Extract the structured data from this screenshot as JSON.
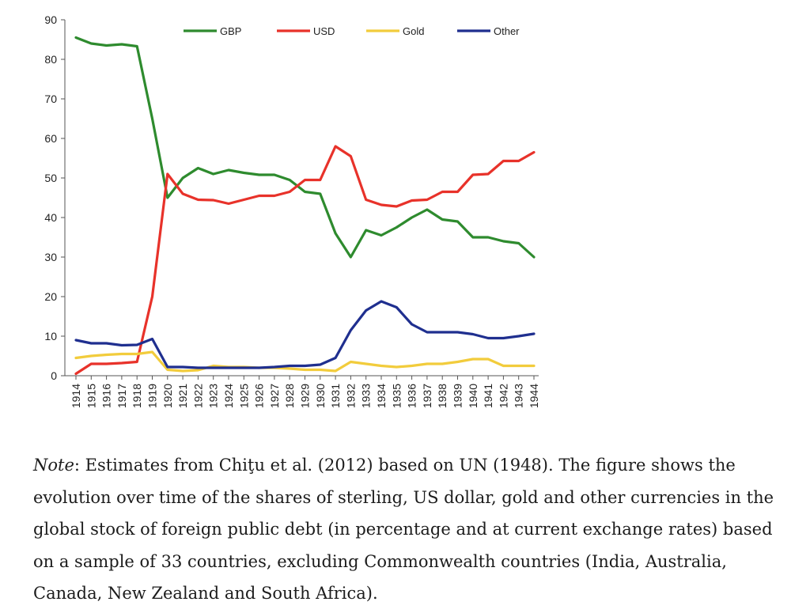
{
  "chart_data": {
    "type": "line",
    "title": "",
    "xlabel": "",
    "ylabel": "",
    "ylim": [
      0,
      90
    ],
    "yticks": [
      0,
      10,
      20,
      30,
      40,
      50,
      60,
      70,
      80,
      90
    ],
    "x": [
      "1914",
      "1915",
      "1916",
      "1917",
      "1918",
      "1919",
      "1920",
      "1921",
      "1922",
      "1923",
      "1924",
      "1925",
      "1926",
      "1927",
      "1928",
      "1929",
      "1930",
      "1931",
      "1932",
      "1933",
      "1934",
      "1935",
      "1936",
      "1937",
      "1938",
      "1939",
      "1940",
      "1941",
      "1942",
      "1943",
      "1944"
    ],
    "legend_position": "top",
    "series": [
      {
        "name": "GBP",
        "color": "#2e8b2e",
        "values": [
          85.5,
          84,
          83.5,
          83.8,
          83.3,
          65,
          45,
          50,
          52.5,
          51,
          52,
          51.3,
          50.8,
          50.8,
          49.5,
          46.5,
          46,
          36,
          30,
          36.8,
          35.5,
          37.5,
          40,
          42,
          39.5,
          39,
          35,
          35,
          34,
          33.5,
          30
        ]
      },
      {
        "name": "USD",
        "color": "#e8322a",
        "values": [
          0.5,
          3,
          3,
          3.2,
          3.5,
          20,
          51,
          46,
          44.5,
          44.4,
          43.5,
          44.5,
          45.5,
          45.5,
          46.5,
          49.5,
          49.5,
          58,
          55.5,
          44.5,
          43.2,
          42.8,
          44.3,
          44.5,
          46.5,
          46.5,
          50.8,
          51,
          54.3,
          54.3,
          56.5
        ]
      },
      {
        "name": "Gold",
        "color": "#f2cc3c",
        "values": [
          4.5,
          5,
          5.3,
          5.5,
          5.5,
          6,
          1.5,
          1.2,
          1.4,
          2.5,
          2.2,
          2.2,
          2.0,
          2.0,
          1.8,
          1.5,
          1.5,
          1.2,
          3.5,
          3,
          2.5,
          2.2,
          2.5,
          3,
          3,
          3.5,
          4.2,
          4.2,
          2.5,
          2.5,
          2.5
        ]
      },
      {
        "name": "Other",
        "color": "#1f2f8f",
        "values": [
          9,
          8.2,
          8.2,
          7.7,
          7.8,
          9.3,
          2.2,
          2.2,
          2.0,
          2.0,
          2.0,
          2.0,
          2.0,
          2.2,
          2.5,
          2.5,
          2.8,
          4.5,
          11.5,
          16.5,
          18.8,
          17.3,
          13,
          11,
          11,
          11,
          10.5,
          9.5,
          9.5,
          10,
          10.6
        ]
      }
    ]
  },
  "note": {
    "label": "Note",
    "text": ": Estimates from Chiţu et al. (2012) based on UN (1948). The figure shows the evolution over time of the shares of sterling, US dollar, gold and other currencies in the global stock of foreign public debt (in percentage and at current exchange rates) based on a sample of 33 countries, excluding Commonwealth countries (India, Australia, Canada, New Zealand and South Africa)."
  }
}
